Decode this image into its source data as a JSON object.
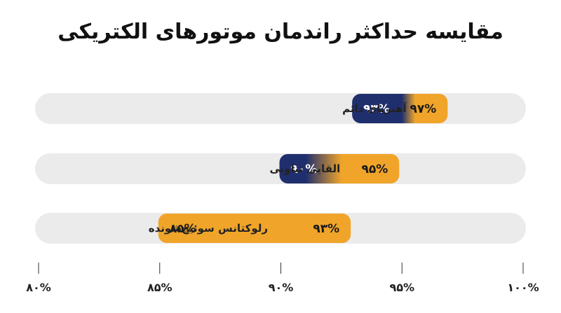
{
  "chart_data": {
    "type": "bar",
    "title": "مقایسه حداکثر راندمان موتورهای الکتریکی",
    "xlim": [
      80,
      100
    ],
    "ticks": [
      80,
      85,
      90,
      95,
      100
    ],
    "tick_labels": [
      "۸۰%",
      "۸۵%",
      "۹۰%",
      "۹۵%",
      "۱۰۰%"
    ],
    "categories": [
      "آهنربای دائم",
      "القایی تناوبی",
      "رلوکتانس سوئیچ‌شونده"
    ],
    "ranges": [
      {
        "category": "آهنربای دائم",
        "min": 93,
        "max": 97,
        "min_label": "۹۳%",
        "max_label": "۹۷%"
      },
      {
        "category": "القایی تناوبی",
        "min": 90,
        "max": 95,
        "min_label": "۹۰%",
        "max_label": "۹۵%"
      },
      {
        "category": "رلوکتانس سوئیچ‌شونده",
        "min": 85,
        "max": 93,
        "min_label": "۸۵%",
        "max_label": "۹۳%"
      }
    ],
    "colors": {
      "low": "#1f2f6e",
      "high": "#f0a52a",
      "track": "#ebebeb",
      "low_text": "#ffffff",
      "high_text": "#1a1a1a"
    }
  }
}
